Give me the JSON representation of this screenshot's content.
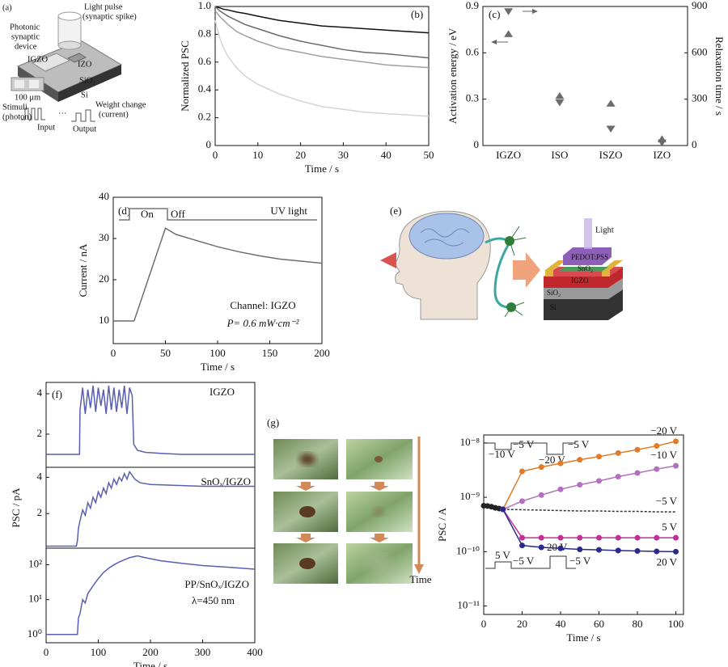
{
  "chart_data": [
    {
      "type": "line",
      "label": "(b)",
      "xlabel": "Time / s",
      "ylabel": "Normalized PSC",
      "x": [
        0,
        1,
        2,
        3,
        5,
        7,
        10,
        15,
        20,
        25,
        30,
        35,
        40,
        45,
        50
      ],
      "series": [
        {
          "color": "#111111",
          "values": [
            1.0,
            0.99,
            0.98,
            0.975,
            0.96,
            0.95,
            0.93,
            0.9,
            0.88,
            0.86,
            0.85,
            0.84,
            0.83,
            0.82,
            0.81
          ]
        },
        {
          "color": "#6a6a6a",
          "values": [
            1.0,
            0.97,
            0.95,
            0.93,
            0.9,
            0.87,
            0.84,
            0.79,
            0.75,
            0.72,
            0.69,
            0.67,
            0.66,
            0.645,
            0.63
          ]
        },
        {
          "color": "#a0a0a0",
          "values": [
            0.97,
            0.93,
            0.9,
            0.87,
            0.82,
            0.79,
            0.75,
            0.7,
            0.67,
            0.64,
            0.62,
            0.6,
            0.58,
            0.57,
            0.56
          ]
        },
        {
          "color": "#d4d4d4",
          "values": [
            0.9,
            0.78,
            0.7,
            0.64,
            0.56,
            0.5,
            0.44,
            0.37,
            0.32,
            0.28,
            0.26,
            0.24,
            0.23,
            0.22,
            0.21
          ]
        }
      ],
      "xlim": [
        0,
        50
      ],
      "xticks": [
        0,
        10,
        20,
        30,
        40,
        50
      ],
      "ylim": [
        0,
        1.0
      ],
      "yticks": [
        0,
        0.2,
        0.4,
        0.6,
        0.8,
        {
          "value": 1.0,
          "label": "1.0"
        }
      ]
    },
    {
      "type": "scatter",
      "label": "(c)",
      "ylabel": "Activation energy / eV",
      "y2label": "Relaxation time / s",
      "categories": [
        "IGZO",
        "ISO",
        "ISZO",
        "IZO"
      ],
      "series": [
        {
          "color": "#6b6b6b",
          "marker": "triangle-up",
          "values": [
            0.72,
            0.32,
            0.27,
            0.04
          ]
        },
        {
          "color": "#6b6b6b",
          "marker": "triangle-down",
          "axis": "y2",
          "values": [
            870,
            280,
            110,
            20
          ]
        }
      ],
      "ylim": [
        0,
        0.9
      ],
      "yticks": [
        0,
        0.3,
        0.6,
        0.9
      ],
      "y2lim": [
        0,
        900
      ],
      "y2ticks": [
        0,
        300,
        600,
        900
      ]
    },
    {
      "type": "line",
      "label": "(d)",
      "xlabel": "Time / s",
      "ylabel": "Current / nA",
      "annotations": [
        "On",
        "Off",
        "UV light",
        "Channel: IGZO",
        "P= 0.6 mW·cm⁻²"
      ],
      "x": [
        0,
        10,
        20,
        50,
        60,
        80,
        100,
        120,
        140,
        160,
        180,
        200
      ],
      "series": [
        {
          "color": "#6e6e6e",
          "values": [
            10,
            10,
            10,
            32.5,
            31,
            29.5,
            28,
            26.8,
            25.8,
            25,
            24.5,
            24
          ]
        }
      ],
      "xlim": [
        0,
        200
      ],
      "xticks": [
        0,
        50,
        100,
        150,
        200
      ],
      "ylim": [
        4.5,
        40
      ],
      "yticks": [
        10,
        20,
        30,
        40
      ]
    },
    {
      "type": "line",
      "label": "(f)",
      "annotations": [
        "IGZO"
      ],
      "x": [
        0,
        30,
        60,
        64,
        65,
        70,
        75,
        80,
        85,
        90,
        95,
        100,
        105,
        110,
        115,
        120,
        125,
        130,
        135,
        140,
        145,
        150,
        155,
        160,
        165,
        168,
        175,
        190,
        220,
        260,
        300,
        350,
        400
      ],
      "series": [
        {
          "color": "#5a5fb0",
          "values": [
            1,
            1,
            1,
            1,
            3.2,
            4.3,
            3.0,
            4.2,
            3.3,
            4.4,
            3.1,
            4.3,
            3.4,
            4.2,
            3.0,
            4.4,
            3.2,
            4.3,
            3.1,
            4.2,
            3.3,
            4.4,
            3.0,
            4.3,
            3.9,
            1.5,
            1.2,
            1.1,
            1.05,
            1.0,
            1.0,
            1.0,
            1.0
          ]
        }
      ],
      "xlim": [
        0,
        400
      ],
      "ylim": [
        0.36,
        4.56
      ],
      "yticks": [
        2,
        4
      ]
    },
    {
      "type": "line",
      "ylabel": "PSC / pA",
      "annotations": [
        "SnOₓ/IGZO"
      ],
      "x": [
        0,
        30,
        58,
        60,
        62,
        65,
        70,
        75,
        80,
        85,
        90,
        95,
        100,
        105,
        110,
        115,
        120,
        125,
        130,
        135,
        140,
        145,
        150,
        155,
        160,
        165,
        170,
        180,
        200,
        250,
        300,
        350,
        400
      ],
      "series": [
        {
          "color": "#5a5fb0",
          "values": [
            0.2,
            0.2,
            0.2,
            0.5,
            1.2,
            1.6,
            2.2,
            1.9,
            2.6,
            2.3,
            2.9,
            2.6,
            3.2,
            2.9,
            3.4,
            3.1,
            3.7,
            3.4,
            3.9,
            3.6,
            4.0,
            3.8,
            4.2,
            3.9,
            4.3,
            4.1,
            3.9,
            3.7,
            3.6,
            3.55,
            3.5,
            3.5,
            3.5
          ]
        }
      ],
      "xlim": [
        0,
        400
      ],
      "ylim": [
        0.09,
        4.55
      ],
      "yticks": [
        2,
        4
      ]
    },
    {
      "type": "line",
      "xlabel": "Time / s",
      "yscale": "log",
      "annotations": [
        "PP/SnOₓ/IGZO",
        "λ=450 nm"
      ],
      "x": [
        0,
        30,
        58,
        60,
        62,
        65,
        70,
        75,
        80,
        90,
        100,
        110,
        120,
        130,
        140,
        150,
        160,
        175,
        190,
        220,
        260,
        300,
        350,
        400
      ],
      "series": [
        {
          "color": "#5a5fb0",
          "values": [
            1,
            1,
            1,
            1,
            3,
            4,
            10,
            8,
            15,
            25,
            40,
            60,
            80,
            100,
            120,
            140,
            160,
            180,
            160,
            130,
            110,
            95,
            85,
            75
          ]
        }
      ],
      "xlim": [
        0,
        400
      ],
      "xticks": [
        0,
        100,
        200,
        300,
        400
      ],
      "ylim": [
        0.58,
        300
      ],
      "yticks": [
        {
          "value": 1,
          "label": "10⁰"
        },
        {
          "value": 10,
          "label": "10¹"
        },
        {
          "value": 100,
          "label": "10²"
        }
      ]
    },
    {
      "type": "line",
      "xlabel": "Time / s",
      "ylabel": "PSC / A",
      "yscale": "log",
      "annotations": [
        "−10 V",
        "−5 V",
        "−20 V",
        "−5 V",
        "5 V",
        "−5 V",
        "20 V",
        "−5 V"
      ],
      "series": [
        {
          "color": "#222222",
          "x": [
            0,
            2,
            4,
            6,
            8,
            10
          ],
          "values": [
            7e-10,
            6.9e-10,
            6.7e-10,
            6.4e-10,
            6.2e-10,
            6e-10
          ],
          "markers": true
        },
        {
          "name": "−20 V",
          "color": "#e07b2a",
          "markers": true,
          "x": [
            10,
            20,
            30,
            40,
            50,
            60,
            70,
            80,
            90,
            100
          ],
          "values": [
            6e-10,
            3e-09,
            3.6e-09,
            4.2e-09,
            4.9e-09,
            5.6e-09,
            6.5e-09,
            7.5e-09,
            8.8e-09,
            1.07e-08
          ]
        },
        {
          "name": "−10 V",
          "color": "#b56fc0",
          "markers": true,
          "x": [
            10,
            20,
            30,
            40,
            50,
            60,
            70,
            80,
            90,
            100
          ],
          "values": [
            6e-10,
            8.5e-10,
            1.1e-09,
            1.4e-09,
            1.7e-09,
            2e-09,
            2.4e-09,
            2.8e-09,
            3.3e-09,
            3.8e-09
          ]
        },
        {
          "name": "−5 V",
          "color": "#333333",
          "dash": true,
          "markers": false,
          "x": [
            10,
            20,
            30,
            40,
            50,
            60,
            70,
            80,
            90,
            100
          ],
          "values": [
            6e-10,
            5.9e-10,
            5.8e-10,
            5.7e-10,
            5.6e-10,
            5.6e-10,
            5.5e-10,
            5.5e-10,
            5.4e-10,
            5.4e-10
          ]
        },
        {
          "name": "5 V",
          "color": "#c0309a",
          "markers": true,
          "x": [
            10,
            20,
            30,
            40,
            50,
            60,
            70,
            80,
            90,
            100
          ],
          "values": [
            6e-10,
            1.8e-10,
            1.8e-10,
            1.8e-10,
            1.8e-10,
            1.8e-10,
            1.8e-10,
            1.8e-10,
            1.8e-10,
            1.8e-10
          ]
        },
        {
          "name": "20 V",
          "color": "#2a2a8c",
          "markers": true,
          "x": [
            10,
            20,
            30,
            40,
            50,
            60,
            70,
            80,
            90,
            100
          ],
          "values": [
            6e-10,
            1.3e-10,
            1.2e-10,
            1.15e-10,
            1.1e-10,
            1.08e-10,
            1.05e-10,
            1.03e-10,
            1.01e-10,
            1e-10
          ]
        }
      ],
      "xlim": [
        0,
        104
      ],
      "xticks": [
        0,
        20,
        40,
        60,
        80,
        100
      ],
      "ylim": [
        7e-12,
        1.4e-08
      ],
      "yticks": [
        {
          "value": 1e-11,
          "label": "10⁻¹¹"
        },
        {
          "value": 1e-10,
          "label": "10⁻¹⁰"
        },
        {
          "value": 1e-09,
          "label": "10⁻⁹"
        },
        {
          "value": 1e-08,
          "label": "10⁻⁸"
        }
      ]
    }
  ],
  "diagrams": {
    "a": {
      "label": "(a)",
      "labels": [
        "Photonic",
        "synaptic",
        "device",
        "Light pulse",
        "(synaptic spike)",
        "IGZO",
        "IZO",
        "SiO₂",
        "Si",
        "100 μm",
        "Stimuli",
        "(photon)",
        "Input",
        "···",
        "Output",
        "Weight change",
        "(current)"
      ]
    },
    "e": {
      "label": "(e)",
      "labels": [
        "Light",
        "PEDOT:PSS",
        "SnO₂",
        "IGZO",
        "SiO₂",
        "Si"
      ]
    },
    "g": {
      "label": "(g)",
      "time": "Time"
    }
  }
}
